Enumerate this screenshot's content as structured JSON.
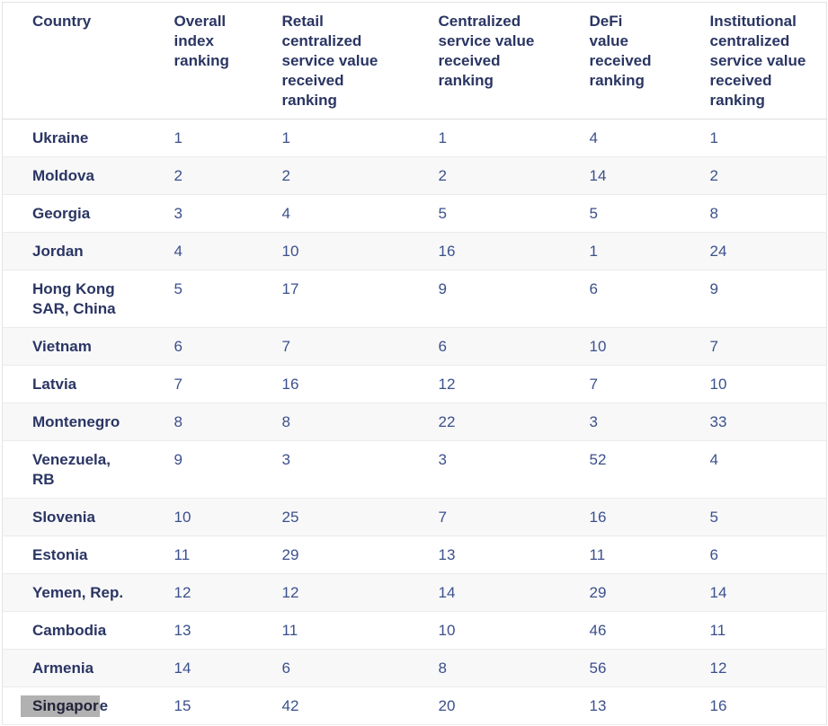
{
  "table": {
    "name": "crypto-adoption-index-rankings",
    "columns": [
      {
        "id": "country",
        "label": "Country",
        "lines": [
          "Country"
        ]
      },
      {
        "id": "overall-index-ranking",
        "label": "Overall index ranking",
        "lines": [
          "Overall",
          "index",
          "ranking"
        ]
      },
      {
        "id": "retail-centralized-service-value-received-ranking",
        "label": "Retail centralized service value received ranking",
        "lines": [
          "Retail",
          "centralized",
          "service value",
          "received",
          "ranking"
        ]
      },
      {
        "id": "centralized-service-value-received-ranking",
        "label": "Centralized service value received ranking",
        "lines": [
          "Centralized",
          "service value",
          "received",
          "ranking"
        ]
      },
      {
        "id": "defi-value-received-ranking",
        "label": "DeFi value received ranking",
        "lines": [
          "DeFi",
          "value",
          "received",
          "ranking"
        ]
      },
      {
        "id": "institutional-centralized-service-value-received-ranking",
        "label": "Institutional centralized service value received ranking",
        "lines": [
          "Institutional",
          "centralized",
          "service value",
          "received",
          "ranking"
        ]
      }
    ],
    "rows": [
      {
        "country": "Ukraine",
        "values": [
          "1",
          "1",
          "1",
          "4",
          "1"
        ]
      },
      {
        "country": "Moldova",
        "values": [
          "2",
          "2",
          "2",
          "14",
          "2"
        ]
      },
      {
        "country": "Georgia",
        "values": [
          "3",
          "4",
          "5",
          "5",
          "8"
        ]
      },
      {
        "country": "Jordan",
        "values": [
          "4",
          "10",
          "16",
          "1",
          "24"
        ]
      },
      {
        "country": "Hong Kong SAR, China",
        "values": [
          "5",
          "17",
          "9",
          "6",
          "9"
        ]
      },
      {
        "country": "Vietnam",
        "values": [
          "6",
          "7",
          "6",
          "10",
          "7"
        ]
      },
      {
        "country": "Latvia",
        "values": [
          "7",
          "16",
          "12",
          "7",
          "10"
        ]
      },
      {
        "country": "Montenegro",
        "values": [
          "8",
          "8",
          "22",
          "3",
          "33"
        ]
      },
      {
        "country": "Venezuela, RB",
        "values": [
          "9",
          "3",
          "3",
          "52",
          "4"
        ]
      },
      {
        "country": "Slovenia",
        "values": [
          "10",
          "25",
          "7",
          "16",
          "5"
        ]
      },
      {
        "country": "Estonia",
        "values": [
          "11",
          "29",
          "13",
          "11",
          "6"
        ]
      },
      {
        "country": "Yemen, Rep.",
        "values": [
          "12",
          "12",
          "14",
          "29",
          "14"
        ]
      },
      {
        "country": "Cambodia",
        "values": [
          "13",
          "11",
          "10",
          "46",
          "11"
        ]
      },
      {
        "country": "Armenia",
        "values": [
          "14",
          "6",
          "8",
          "56",
          "12"
        ]
      },
      {
        "country": "Singapore",
        "values": [
          "15",
          "42",
          "20",
          "13",
          "16"
        ],
        "selection_text": "Singapor"
      }
    ],
    "colors": {
      "header_text": "#2a3563",
      "country_text": "#2a3563",
      "value_text": "#3b508c",
      "row_alt_background": "#f8f8f9",
      "row_border": "#ebebee",
      "outer_border": "#e4e4e7",
      "selection_highlight": "#b1b1b1"
    }
  }
}
